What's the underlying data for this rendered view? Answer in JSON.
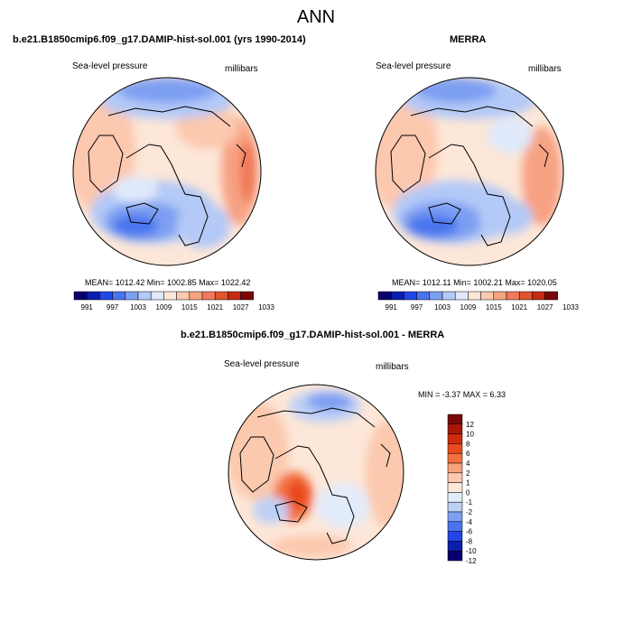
{
  "title": "ANN",
  "panels": [
    {
      "title": "b.e21.B1850cmip6.f09_g17.DAMIP-hist-sol.001 (yrs 1990-2014)",
      "variable": "Sea-level pressure",
      "units": "millibars",
      "stats": "MEAN= 1012.42   Min= 1002.85   Max= 1022.42",
      "colorbar_labels": [
        "991",
        "997",
        "1003",
        "1009",
        "1015",
        "1021",
        "1027",
        "1033"
      ]
    },
    {
      "title": "MERRA",
      "variable": "Sea-level pressure",
      "units": "millibars",
      "stats": "MEAN= 1012.11   Min= 1002.21   Max= 1020.05",
      "colorbar_labels": [
        "991",
        "997",
        "1003",
        "1009",
        "1015",
        "1021",
        "1027",
        "1033"
      ]
    },
    {
      "title": "b.e21.B1850cmip6.f09_g17.DAMIP-hist-sol.001 - MERRA",
      "variable": "Sea-level pressure",
      "units": "millibars",
      "stats": "MIN =  -3.37 MAX =   6.33",
      "colorbar_labels": [
        "12",
        "10",
        "8",
        "6",
        "4",
        "2",
        "1",
        "0",
        "-1",
        "-2",
        "-4",
        "-6",
        "-8",
        "-10",
        "-12"
      ]
    }
  ],
  "colors": {
    "abs_scale": [
      "#08006e",
      "#0b1fae",
      "#2147e6",
      "#4a74ee",
      "#7d9ff2",
      "#b3c9f7",
      "#dfe9fb",
      "#fde7d8",
      "#fcc8ae",
      "#f7a283",
      "#f07a5a",
      "#e2542e",
      "#c42a14",
      "#7a0707"
    ],
    "diff_scale": [
      "#7a0707",
      "#a91708",
      "#cf2b0b",
      "#e84a1c",
      "#f4713f",
      "#f9a07c",
      "#fbc9ae",
      "#fde7d8",
      "#e3ecfb",
      "#bed0f6",
      "#7d9ff2",
      "#4a74ee",
      "#2147e6",
      "#0b1fae",
      "#08006e"
    ]
  }
}
